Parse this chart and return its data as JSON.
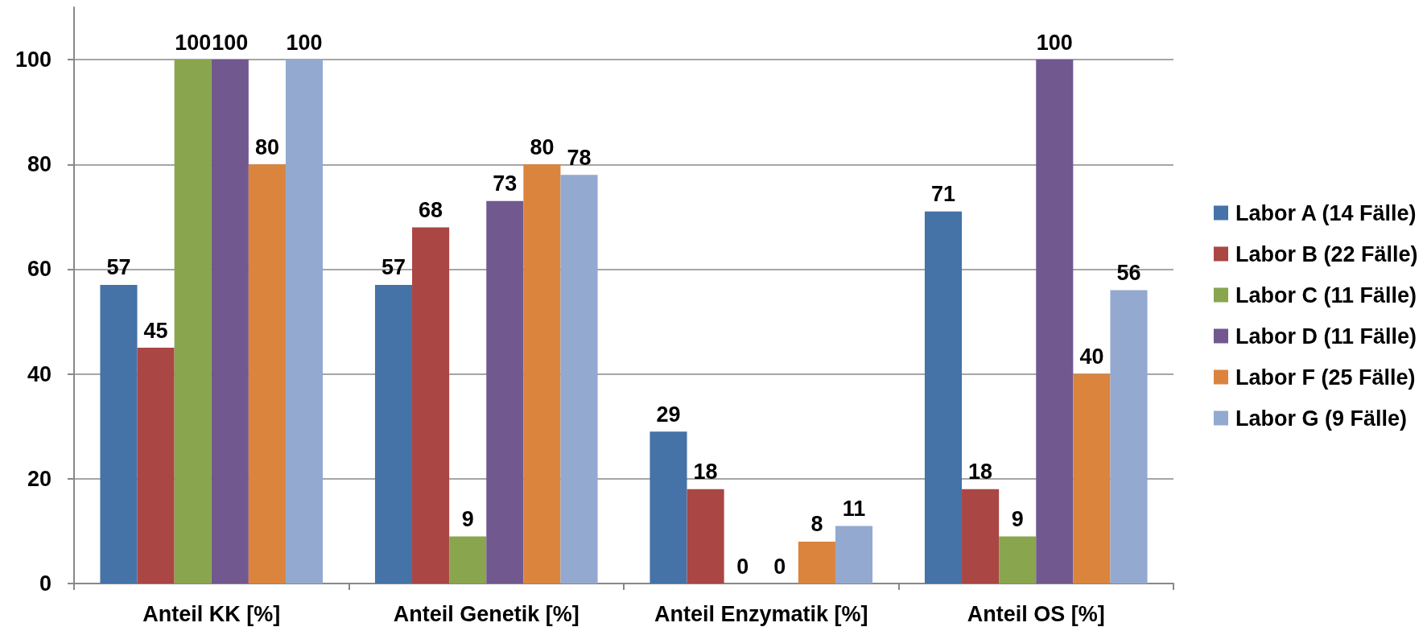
{
  "chart_data": {
    "type": "bar",
    "categories": [
      "Anteil KK [%]",
      "Anteil Genetik [%]",
      "Anteil Enzymatik [%]",
      "Anteil OS [%]"
    ],
    "series": [
      {
        "name": "Labor A (14 Fälle)",
        "color": "#4572a7",
        "values": [
          57,
          57,
          29,
          71
        ]
      },
      {
        "name": "Labor B (22 Fälle)",
        "color": "#aa4643",
        "values": [
          45,
          68,
          18,
          18
        ]
      },
      {
        "name": "Labor C (11 Fälle)",
        "color": "#89a54e",
        "values": [
          100,
          9,
          0,
          9
        ]
      },
      {
        "name": "Labor D (11 Fälle)",
        "color": "#71588f",
        "values": [
          100,
          73,
          0,
          100
        ]
      },
      {
        "name": "Labor F (25 Fälle)",
        "color": "#db843d",
        "values": [
          80,
          80,
          8,
          40
        ]
      },
      {
        "name": "Labor G (9 Fälle)",
        "color": "#93a9cf",
        "values": [
          100,
          78,
          11,
          56
        ]
      }
    ],
    "ylim": [
      0,
      110
    ],
    "yticks": [
      0,
      20,
      40,
      60,
      80,
      100
    ],
    "grid": "y",
    "legend": "right",
    "data_labels": true
  }
}
